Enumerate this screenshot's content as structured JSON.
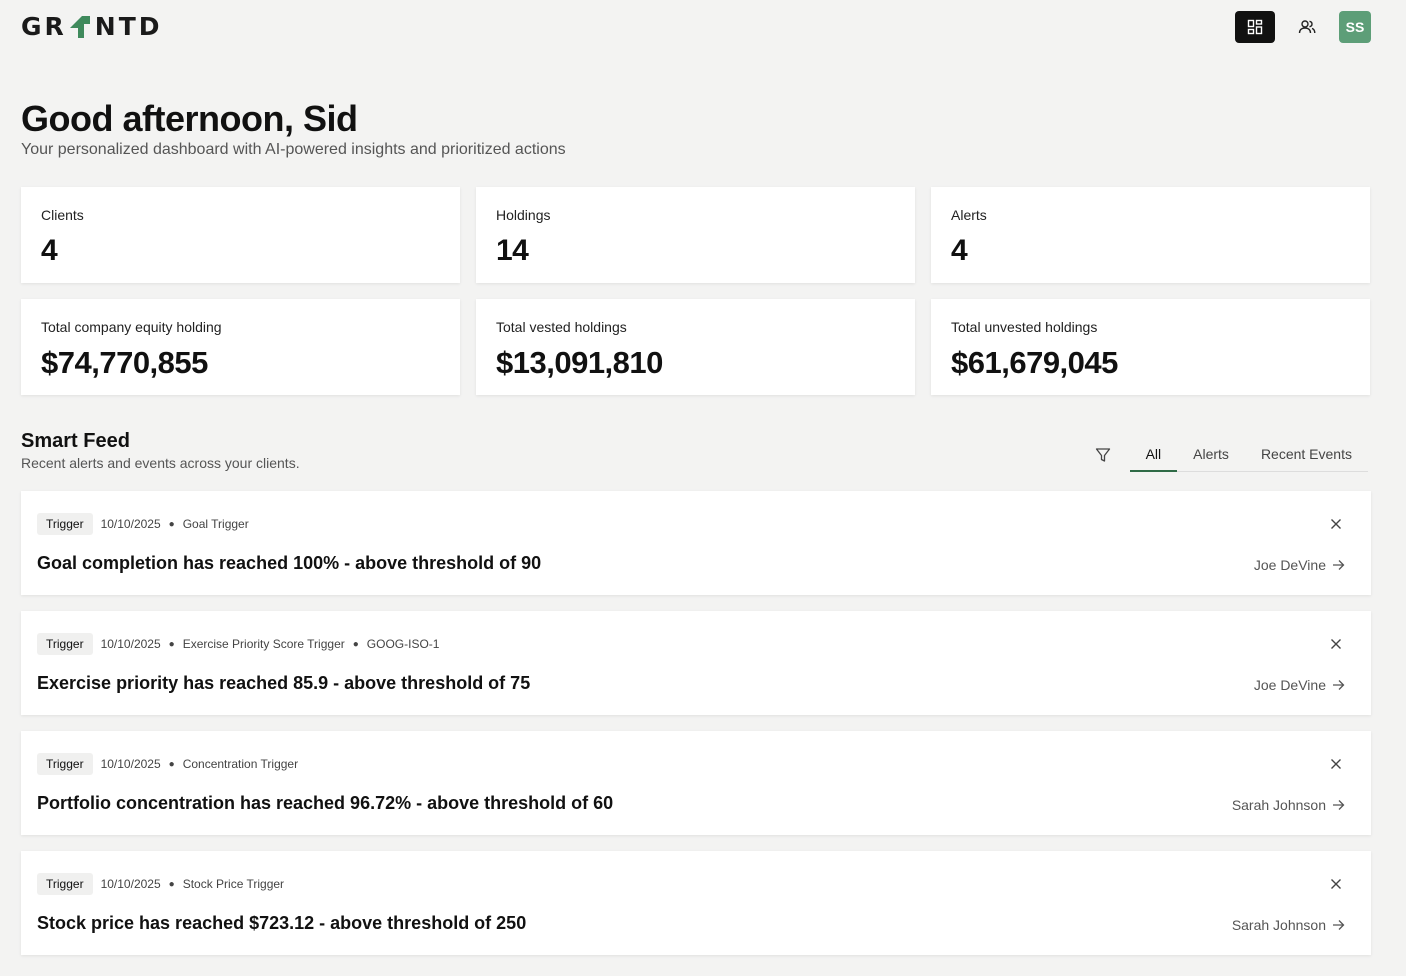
{
  "app": {
    "logo_left": "GR",
    "logo_right": "NTD",
    "user_initials": "SS"
  },
  "greeting": {
    "title": "Good afternoon, Sid",
    "subtitle": "Your personalized dashboard with AI-powered insights and prioritized actions"
  },
  "stats": [
    {
      "label": "Clients",
      "value": "4"
    },
    {
      "label": "Holdings",
      "value": "14"
    },
    {
      "label": "Alerts",
      "value": "4"
    },
    {
      "label": "Total company equity holding",
      "value": "$74,770,855"
    },
    {
      "label": "Total vested holdings",
      "value": "$13,091,810"
    },
    {
      "label": "Total unvested holdings",
      "value": "$61,679,045"
    }
  ],
  "feed": {
    "title": "Smart Feed",
    "subtitle": "Recent alerts and events across your clients.",
    "tabs": [
      {
        "label": "All"
      },
      {
        "label": "Alerts"
      },
      {
        "label": "Recent Events"
      }
    ],
    "items": [
      {
        "badge": "Trigger",
        "date": "10/10/2025",
        "type": "Goal Trigger",
        "extra": "",
        "title": "Goal completion has reached 100% - above threshold of 90",
        "client": "Joe DeVine"
      },
      {
        "badge": "Trigger",
        "date": "10/10/2025",
        "type": "Exercise Priority Score Trigger",
        "extra": "GOOG-ISO-1",
        "title": "Exercise priority has reached 85.9 - above threshold of 75",
        "client": "Joe DeVine"
      },
      {
        "badge": "Trigger",
        "date": "10/10/2025",
        "type": "Concentration Trigger",
        "extra": "",
        "title": "Portfolio concentration has reached 96.72% - above threshold of 60",
        "client": "Sarah Johnson"
      },
      {
        "badge": "Trigger",
        "date": "10/10/2025",
        "type": "Stock Price Trigger",
        "extra": "",
        "title": "Stock price has reached $723.12 - above threshold of 250",
        "client": "Sarah Johnson"
      }
    ]
  }
}
